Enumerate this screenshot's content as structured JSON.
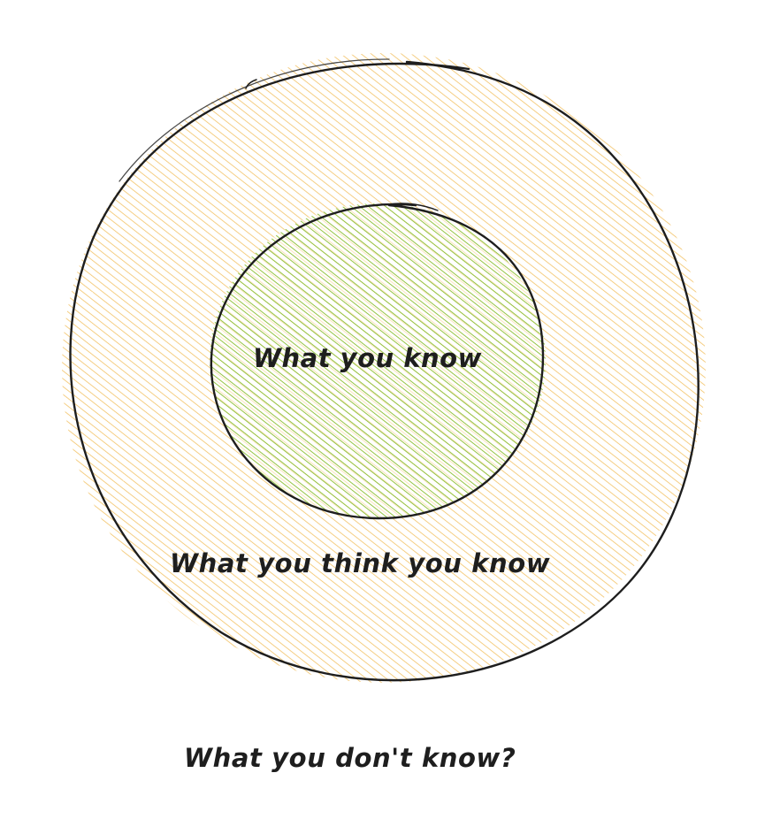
{
  "diagram": {
    "inner_label": "What you know",
    "middle_label": "What you think you know",
    "outer_label": "What you don't know?"
  },
  "colors": {
    "outline": "#1e1e1e",
    "outer_fill": "#f0b84a",
    "inner_fill": "#8fc13a",
    "background": "#ffffff"
  }
}
